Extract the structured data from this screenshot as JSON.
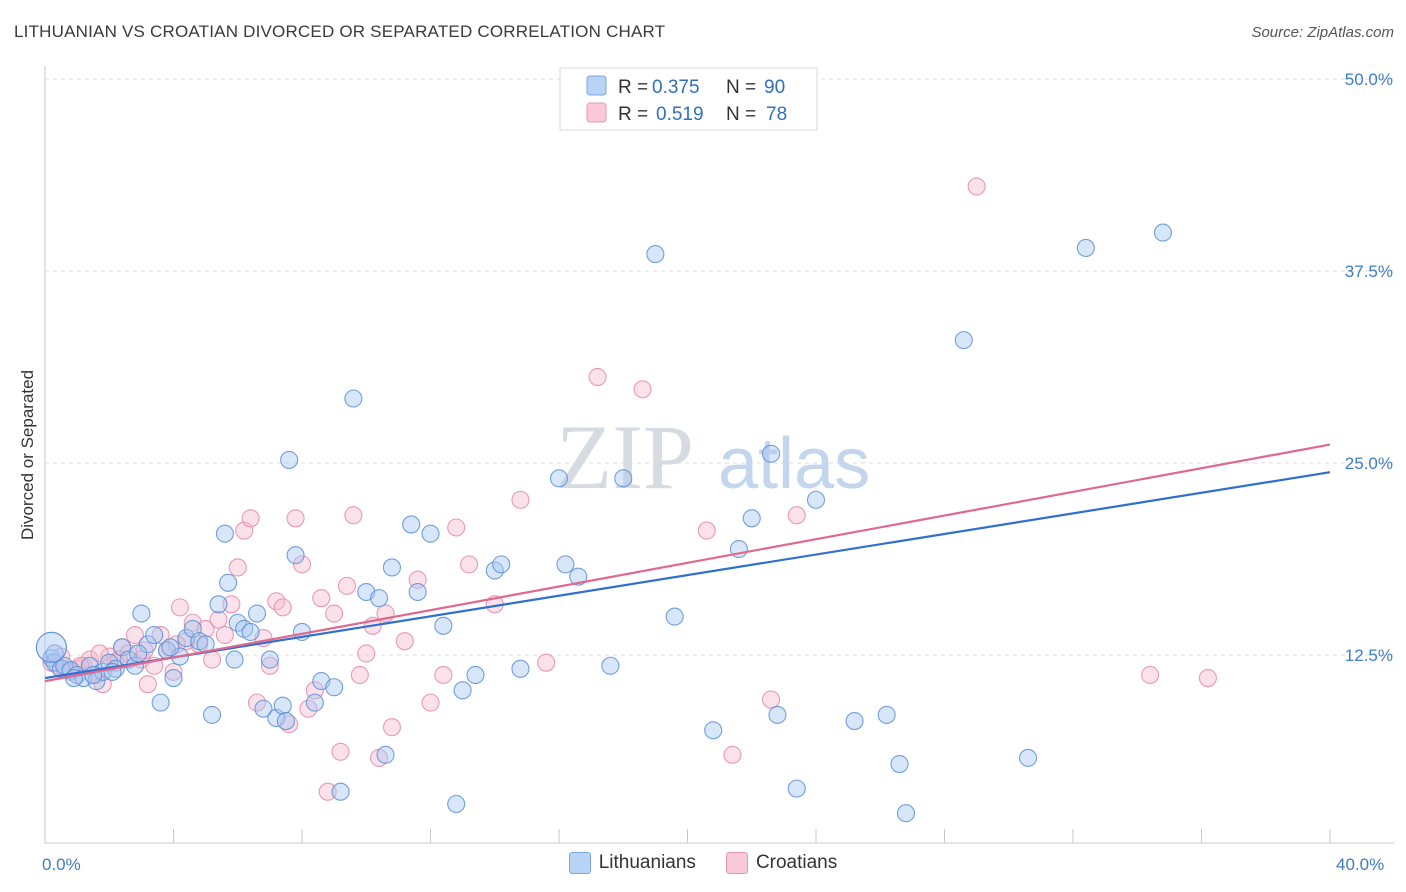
{
  "title": "LITHUANIAN VS CROATIAN DIVORCED OR SEPARATED CORRELATION CHART",
  "source": "Source: ZipAtlas.com",
  "watermark": {
    "zip": "ZIP",
    "atlas": "atlas"
  },
  "legend": {
    "r_label": "R =",
    "n_label": "N =",
    "lith_r": "0.375",
    "lith_n": "90",
    "croat_r": "0.519",
    "croat_n": "78"
  },
  "bottom_legend": {
    "lith": "Lithuanians",
    "croat": "Croatians"
  },
  "colors": {
    "blue_fill": "#a9c8f2",
    "blue_stroke": "#5b8fd6",
    "blue_line": "#2f6fcf",
    "pink_fill": "#f7bccf",
    "pink_stroke": "#e58aab",
    "pink_line": "#e0688f"
  },
  "chart_data": {
    "type": "scatter",
    "title": "LITHUANIAN VS CROATIAN DIVORCED OR SEPARATED CORRELATION CHART",
    "xlabel": "",
    "ylabel": "Divorced or Separated",
    "xlim": [
      0,
      40
    ],
    "ylim": [
      0,
      52
    ],
    "x_tick_labels": [
      "0.0%",
      "40.0%"
    ],
    "y_ticks": [
      12.5,
      25.0,
      37.5,
      50.0
    ],
    "y_tick_labels": [
      "12.5%",
      "25.0%",
      "37.5%",
      "50.0%"
    ],
    "series": [
      {
        "name": "Lithuanians",
        "R": 0.375,
        "N": 90,
        "trend": {
          "x": [
            0,
            40
          ],
          "y": [
            11.0,
            24.4
          ]
        },
        "points": [
          [
            0.2,
            12.3
          ],
          [
            0.3,
            12.0
          ],
          [
            0.5,
            11.6
          ],
          [
            0.6,
            11.8
          ],
          [
            0.8,
            11.5
          ],
          [
            1.0,
            11.2
          ],
          [
            1.2,
            11.0
          ],
          [
            1.4,
            11.8
          ],
          [
            1.6,
            10.8
          ],
          [
            1.8,
            11.4
          ],
          [
            2.0,
            12.0
          ],
          [
            2.2,
            11.6
          ],
          [
            2.4,
            13.0
          ],
          [
            2.6,
            12.2
          ],
          [
            2.8,
            11.8
          ],
          [
            3.0,
            15.2
          ],
          [
            3.2,
            13.2
          ],
          [
            3.4,
            13.8
          ],
          [
            3.6,
            9.4
          ],
          [
            3.8,
            12.8
          ],
          [
            4.0,
            11.0
          ],
          [
            4.2,
            12.4
          ],
          [
            4.4,
            13.6
          ],
          [
            4.6,
            14.2
          ],
          [
            4.8,
            13.4
          ],
          [
            5.0,
            13.2
          ],
          [
            5.2,
            8.6
          ],
          [
            5.4,
            15.8
          ],
          [
            5.6,
            20.4
          ],
          [
            5.7,
            17.2
          ],
          [
            5.9,
            12.2
          ],
          [
            6.0,
            14.6
          ],
          [
            6.2,
            14.2
          ],
          [
            6.4,
            14.0
          ],
          [
            6.6,
            15.2
          ],
          [
            6.8,
            9.0
          ],
          [
            7.0,
            12.2
          ],
          [
            7.2,
            8.4
          ],
          [
            7.4,
            9.2
          ],
          [
            7.5,
            8.2
          ],
          [
            7.6,
            25.2
          ],
          [
            7.8,
            19.0
          ],
          [
            8.0,
            14.0
          ],
          [
            8.4,
            9.4
          ],
          [
            8.6,
            10.8
          ],
          [
            9.0,
            10.4
          ],
          [
            9.2,
            3.6
          ],
          [
            9.6,
            29.2
          ],
          [
            10.0,
            16.6
          ],
          [
            10.4,
            16.2
          ],
          [
            10.6,
            6.0
          ],
          [
            10.8,
            18.2
          ],
          [
            11.4,
            21.0
          ],
          [
            11.6,
            16.6
          ],
          [
            12.0,
            20.4
          ],
          [
            12.4,
            14.4
          ],
          [
            12.8,
            2.8
          ],
          [
            13.0,
            10.2
          ],
          [
            13.4,
            11.2
          ],
          [
            14.0,
            18.0
          ],
          [
            14.2,
            18.4
          ],
          [
            14.8,
            11.6
          ],
          [
            16.0,
            24.0
          ],
          [
            16.2,
            18.4
          ],
          [
            16.6,
            17.6
          ],
          [
            17.6,
            11.8
          ],
          [
            18.0,
            24.0
          ],
          [
            19.0,
            38.6
          ],
          [
            19.6,
            15.0
          ],
          [
            20.8,
            7.6
          ],
          [
            21.6,
            19.4
          ],
          [
            22.0,
            21.4
          ],
          [
            22.6,
            25.6
          ],
          [
            22.8,
            8.6
          ],
          [
            23.4,
            3.8
          ],
          [
            24.0,
            22.6
          ],
          [
            25.2,
            8.2
          ],
          [
            26.2,
            8.6
          ],
          [
            26.6,
            5.4
          ],
          [
            26.8,
            2.2
          ],
          [
            28.6,
            33.0
          ],
          [
            30.6,
            5.8
          ],
          [
            32.4,
            39.0
          ],
          [
            34.8,
            40.0
          ],
          [
            0.3,
            12.6
          ],
          [
            0.9,
            11.0
          ],
          [
            1.5,
            11.2
          ],
          [
            2.1,
            11.4
          ],
          [
            2.9,
            12.6
          ],
          [
            3.9,
            13.0
          ]
        ]
      },
      {
        "name": "Croatians",
        "R": 0.519,
        "N": 78,
        "trend": {
          "x": [
            0,
            40
          ],
          "y": [
            10.8,
            26.2
          ]
        },
        "points": [
          [
            0.2,
            12.0
          ],
          [
            0.4,
            11.8
          ],
          [
            0.6,
            11.6
          ],
          [
            0.8,
            11.4
          ],
          [
            1.0,
            11.6
          ],
          [
            1.2,
            11.8
          ],
          [
            1.4,
            12.2
          ],
          [
            1.6,
            11.2
          ],
          [
            1.8,
            10.6
          ],
          [
            2.0,
            12.4
          ],
          [
            2.2,
            12.0
          ],
          [
            2.4,
            13.0
          ],
          [
            2.6,
            12.6
          ],
          [
            2.8,
            13.8
          ],
          [
            3.0,
            12.2
          ],
          [
            3.2,
            10.6
          ],
          [
            3.4,
            11.8
          ],
          [
            3.6,
            13.8
          ],
          [
            3.8,
            12.8
          ],
          [
            4.0,
            11.4
          ],
          [
            4.2,
            15.6
          ],
          [
            4.4,
            13.4
          ],
          [
            4.6,
            14.6
          ],
          [
            4.8,
            13.2
          ],
          [
            5.0,
            14.2
          ],
          [
            5.2,
            12.2
          ],
          [
            5.4,
            14.8
          ],
          [
            5.6,
            13.8
          ],
          [
            5.8,
            15.8
          ],
          [
            6.0,
            18.2
          ],
          [
            6.2,
            20.6
          ],
          [
            6.4,
            21.4
          ],
          [
            6.6,
            9.4
          ],
          [
            6.8,
            13.6
          ],
          [
            7.0,
            11.8
          ],
          [
            7.2,
            16.0
          ],
          [
            7.4,
            15.6
          ],
          [
            7.6,
            8.0
          ],
          [
            7.8,
            21.4
          ],
          [
            8.0,
            18.4
          ],
          [
            8.2,
            9.0
          ],
          [
            8.4,
            10.2
          ],
          [
            8.6,
            16.2
          ],
          [
            8.8,
            3.6
          ],
          [
            9.0,
            15.2
          ],
          [
            9.2,
            6.2
          ],
          [
            9.4,
            17.0
          ],
          [
            9.6,
            21.6
          ],
          [
            9.8,
            11.2
          ],
          [
            10.0,
            12.6
          ],
          [
            10.2,
            14.4
          ],
          [
            10.4,
            5.8
          ],
          [
            10.6,
            15.2
          ],
          [
            10.8,
            7.8
          ],
          [
            11.2,
            13.4
          ],
          [
            11.6,
            17.4
          ],
          [
            12.0,
            9.4
          ],
          [
            12.4,
            11.2
          ],
          [
            12.8,
            20.8
          ],
          [
            13.2,
            18.4
          ],
          [
            14.0,
            15.8
          ],
          [
            14.8,
            22.6
          ],
          [
            15.6,
            12.0
          ],
          [
            17.2,
            30.6
          ],
          [
            18.6,
            29.8
          ],
          [
            20.6,
            20.6
          ],
          [
            21.4,
            6.0
          ],
          [
            22.6,
            9.6
          ],
          [
            23.4,
            21.6
          ],
          [
            29.0,
            43.0
          ],
          [
            34.4,
            11.2
          ],
          [
            36.2,
            11.0
          ],
          [
            0.5,
            12.4
          ],
          [
            1.1,
            11.8
          ],
          [
            1.7,
            12.6
          ],
          [
            2.3,
            12.2
          ],
          [
            3.1,
            12.8
          ],
          [
            4.1,
            13.2
          ]
        ]
      }
    ]
  }
}
